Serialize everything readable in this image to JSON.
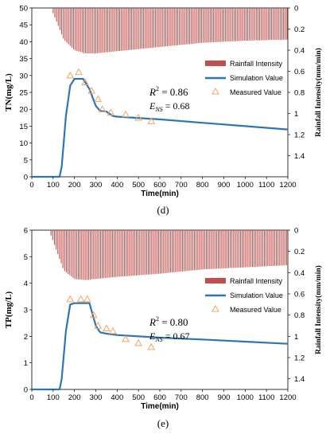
{
  "chart_data": [
    {
      "type": "line",
      "panel_label": "(d)",
      "ylabel": "TN(mg/L)",
      "y2label": "Rainfall Intensity(mm/min)",
      "xlabel": "Time(min)",
      "xlim": [
        0,
        1200
      ],
      "xticks": [
        0,
        100,
        200,
        300,
        400,
        500,
        600,
        700,
        800,
        900,
        1000,
        1100,
        1200
      ],
      "ylim": [
        0,
        50
      ],
      "yticks": [
        0,
        5,
        10,
        15,
        20,
        25,
        30,
        35,
        40,
        45,
        50
      ],
      "y2lim": [
        1.6,
        0
      ],
      "y2ticks": [
        0,
        0.2,
        0.4,
        0.6,
        0.8,
        1,
        1.2,
        1.4
      ],
      "y2ticklabels": [
        "0",
        "0.2",
        "0.4",
        "0.6",
        "0.8",
        "1",
        "1.2",
        "1.4"
      ],
      "legend_position": "right",
      "stats": {
        "r2": "R² = 0.86",
        "ens": "E_NS = 0.68"
      },
      "series": [
        {
          "name": "Rainfall Intensity",
          "type": "bar",
          "axis": "right",
          "color": "#C0504D",
          "x": [
            100,
            150,
            200,
            250,
            300,
            400,
            600,
            800,
            1000,
            1200
          ],
          "values": [
            0.05,
            0.3,
            0.4,
            0.43,
            0.43,
            0.41,
            0.37,
            0.33,
            0.31,
            0.3
          ]
        },
        {
          "name": "Simulation Value",
          "type": "line",
          "axis": "left",
          "color": "#2E75B6",
          "x": [
            0,
            130,
            140,
            160,
            180,
            200,
            240,
            270,
            300,
            320,
            350,
            380,
            400,
            600,
            800,
            1000,
            1200
          ],
          "values": [
            0,
            0,
            3,
            18,
            27,
            29,
            29,
            26,
            21,
            19.5,
            19.3,
            18,
            17.8,
            17,
            16,
            15,
            14
          ]
        },
        {
          "name": "Measured Value",
          "type": "scatter",
          "axis": "left",
          "color": "#F4A460",
          "x": [
            180,
            220,
            250,
            280,
            310,
            330,
            370,
            440,
            500,
            560
          ],
          "values": [
            30,
            31,
            28,
            25.5,
            23,
            20,
            19,
            18.5,
            17.5,
            16.5
          ]
        }
      ]
    },
    {
      "type": "line",
      "panel_label": "(e)",
      "ylabel": "TP(mg/L)",
      "y2label": "Rainfall Intensity(mm/min)",
      "xlabel": "Time(min)",
      "xlim": [
        0,
        1200
      ],
      "xticks": [
        0,
        100,
        200,
        300,
        400,
        500,
        600,
        700,
        800,
        900,
        1000,
        1100,
        1200
      ],
      "ylim": [
        0,
        6
      ],
      "yticks": [
        0,
        1,
        2,
        3,
        4,
        5,
        6
      ],
      "y2lim": [
        1.5,
        0
      ],
      "y2ticks": [
        0,
        0.2,
        0.4,
        0.6,
        0.8,
        1,
        1.2,
        1.4
      ],
      "y2ticklabels": [
        "0",
        "0.2",
        "0.4",
        "0.6",
        "0.8",
        "1",
        "1.2",
        "1.4"
      ],
      "legend_position": "right",
      "stats": {
        "r2": "R² = 0.80",
        "ens": "E_NS = 0.67"
      },
      "series": [
        {
          "name": "Rainfall Intensity",
          "type": "bar",
          "axis": "right",
          "color": "#C0504D",
          "x": [
            90,
            150,
            200,
            250,
            300,
            400,
            600,
            800,
            1000,
            1200
          ],
          "values": [
            0.05,
            0.38,
            0.46,
            0.47,
            0.46,
            0.44,
            0.41,
            0.37,
            0.35,
            0.33
          ]
        },
        {
          "name": "Simulation Value",
          "type": "line",
          "axis": "left",
          "color": "#2E75B6",
          "x": [
            0,
            130,
            140,
            160,
            180,
            200,
            270,
            300,
            320,
            350,
            400,
            600,
            800,
            1000,
            1200
          ],
          "values": [
            0,
            0,
            0.4,
            2.2,
            3.2,
            3.25,
            3.25,
            2.4,
            2.15,
            2.1,
            2.05,
            1.95,
            1.88,
            1.8,
            1.72
          ]
        },
        {
          "name": "Measured Value",
          "type": "scatter",
          "axis": "left",
          "color": "#F4A460",
          "x": [
            180,
            230,
            260,
            290,
            310,
            350,
            380,
            440,
            500,
            560
          ],
          "values": [
            3.4,
            3.4,
            3.4,
            2.8,
            2.4,
            2.3,
            2.2,
            1.9,
            1.75,
            1.6
          ]
        }
      ]
    }
  ]
}
